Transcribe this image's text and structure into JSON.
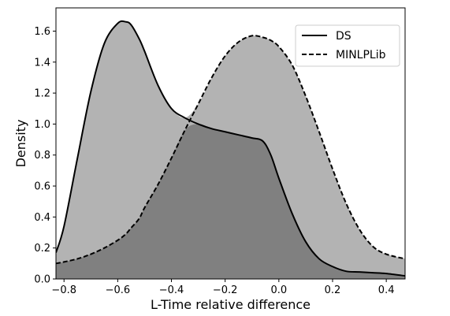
{
  "chart_data": {
    "type": "area",
    "title": "",
    "xlabel": "L-Time relative difference",
    "ylabel": "Density",
    "xlim": [
      -0.83,
      0.47
    ],
    "ylim": [
      0.0,
      1.75
    ],
    "xticks": [
      -0.8,
      -0.6,
      -0.4,
      -0.2,
      0.0,
      0.2,
      0.4
    ],
    "xtick_labels": [
      "−0.8",
      "−0.6",
      "−0.4",
      "−0.2",
      "0.0",
      "0.2",
      "0.4"
    ],
    "yticks": [
      0.0,
      0.2,
      0.4,
      0.6,
      0.8,
      1.0,
      1.2,
      1.4,
      1.6
    ],
    "ytick_labels": [
      "0.0",
      "0.2",
      "0.4",
      "0.6",
      "0.8",
      "1.0",
      "1.2",
      "1.4",
      "1.6"
    ],
    "grid": false,
    "legend_position": "top-right",
    "colors": {
      "fill_single": "#b3b3b3",
      "fill_overlap": "#808080",
      "line": "#000000"
    },
    "x": [
      -0.83,
      -0.8,
      -0.75,
      -0.7,
      -0.65,
      -0.6,
      -0.57,
      -0.55,
      -0.52,
      -0.5,
      -0.45,
      -0.4,
      -0.35,
      -0.3,
      -0.25,
      -0.2,
      -0.15,
      -0.1,
      -0.06,
      -0.03,
      0.0,
      0.05,
      0.1,
      0.15,
      0.2,
      0.25,
      0.3,
      0.35,
      0.4,
      0.47
    ],
    "series": [
      {
        "name": "DS",
        "line_style": "solid",
        "values": [
          0.17,
          0.34,
          0.78,
          1.21,
          1.52,
          1.65,
          1.66,
          1.64,
          1.55,
          1.47,
          1.25,
          1.1,
          1.04,
          1.0,
          0.97,
          0.95,
          0.93,
          0.91,
          0.89,
          0.8,
          0.65,
          0.42,
          0.24,
          0.13,
          0.08,
          0.05,
          0.045,
          0.04,
          0.035,
          0.02
        ]
      },
      {
        "name": "MINLPLib",
        "line_style": "dashed",
        "values": [
          0.1,
          0.11,
          0.13,
          0.16,
          0.2,
          0.25,
          0.29,
          0.33,
          0.39,
          0.46,
          0.61,
          0.78,
          0.96,
          1.13,
          1.3,
          1.44,
          1.53,
          1.57,
          1.56,
          1.54,
          1.5,
          1.38,
          1.18,
          0.95,
          0.71,
          0.49,
          0.32,
          0.21,
          0.16,
          0.13
        ]
      }
    ]
  }
}
